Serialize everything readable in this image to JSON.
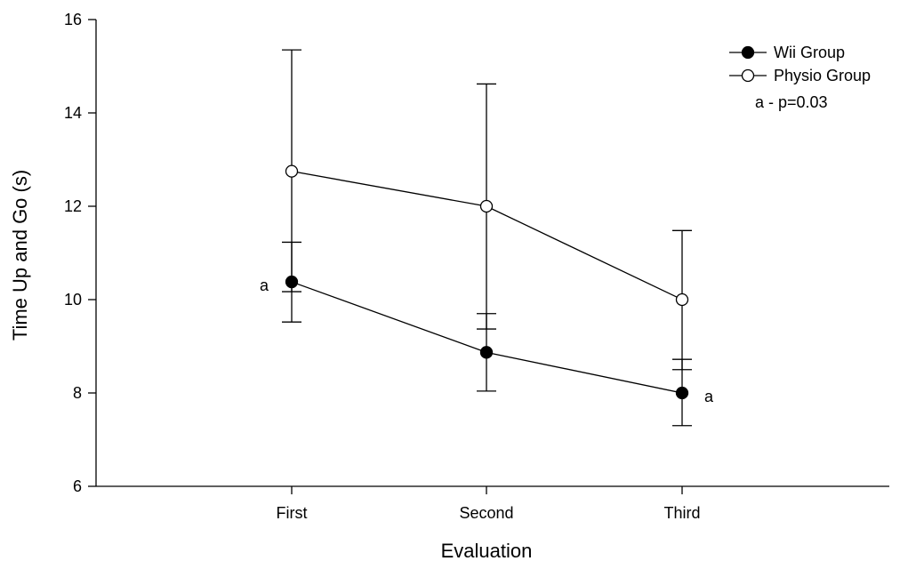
{
  "chart_data": {
    "type": "line",
    "xlabel": "Evaluation",
    "ylabel": "Time Up and Go (s)",
    "categories": [
      "First",
      "Second",
      "Third"
    ],
    "ylim": [
      6,
      16
    ],
    "yticks": [
      6,
      8,
      10,
      12,
      14,
      16
    ],
    "grid": false,
    "legend_position": "top-right",
    "series": [
      {
        "name": "Wii Group",
        "marker": "filled-circle",
        "color": "#000000",
        "values": [
          10.38,
          8.87,
          8.0
        ],
        "error_upper": [
          11.23,
          9.7,
          8.72
        ],
        "error_lower": [
          9.52,
          8.04,
          7.3
        ]
      },
      {
        "name": "Physio Group",
        "marker": "open-circle",
        "color": "#000000",
        "values": [
          12.75,
          12.0,
          10.0
        ],
        "error_upper": [
          15.35,
          14.62,
          11.48
        ],
        "error_lower": [
          10.17,
          9.37,
          8.5
        ]
      }
    ],
    "annotations": [
      {
        "text": "a",
        "series": 0,
        "point": 0,
        "side": "left"
      },
      {
        "text": "a",
        "series": 0,
        "point": 2,
        "side": "right"
      }
    ],
    "legend_note": "a - p=0.03"
  }
}
